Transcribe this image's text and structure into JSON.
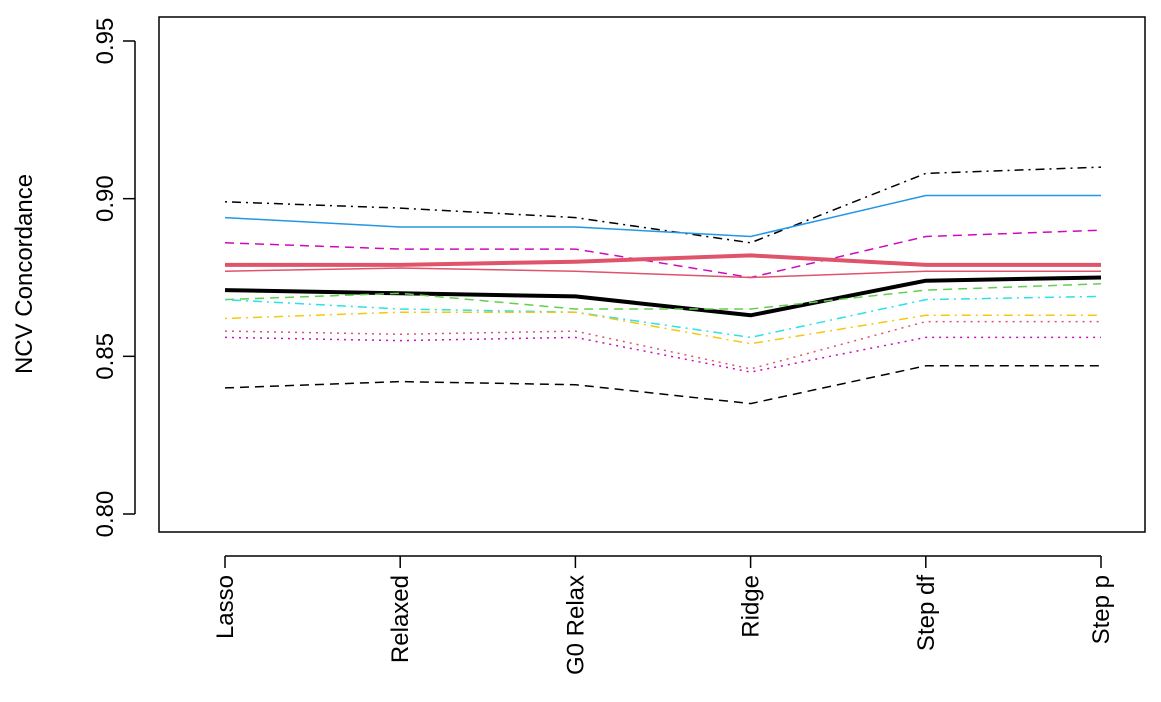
{
  "chart_data": {
    "type": "line",
    "ylabel": "NCV Concordance",
    "xlabel": "",
    "title": "",
    "categories": [
      "Lasso",
      "Relaxed",
      "G0 Relax",
      "Ridge",
      "Step df",
      "Step p"
    ],
    "ylim": [
      0.8,
      0.95
    ],
    "yticks": [
      0.8,
      0.85,
      0.9,
      0.95
    ],
    "ytick_labels": [
      "0.80",
      "0.85",
      "0.90",
      "0.95"
    ],
    "legend": "none",
    "grid": false,
    "series": [
      {
        "color": "#000000",
        "style": "dotdash",
        "width": 1.5,
        "values": [
          0.899,
          0.897,
          0.894,
          0.886,
          0.908,
          0.91
        ]
      },
      {
        "color": "#2297E6",
        "style": "solid",
        "width": 1.5,
        "values": [
          0.894,
          0.891,
          0.891,
          0.888,
          0.901,
          0.901
        ]
      },
      {
        "color": "#CD0BBC",
        "style": "dashed",
        "width": 1.5,
        "values": [
          0.886,
          0.884,
          0.884,
          0.875,
          0.888,
          0.89
        ]
      },
      {
        "color": "#DF536B",
        "style": "solid",
        "width": 4,
        "values": [
          0.879,
          0.879,
          0.88,
          0.882,
          0.879,
          0.879
        ]
      },
      {
        "color": "#DF536B",
        "style": "solid",
        "width": 1.5,
        "values": [
          0.877,
          0.878,
          0.877,
          0.875,
          0.877,
          0.877
        ]
      },
      {
        "color": "#000000",
        "style": "solid",
        "width": 4,
        "values": [
          0.871,
          0.87,
          0.869,
          0.863,
          0.874,
          0.875
        ]
      },
      {
        "color": "#61D04F",
        "style": "dashed",
        "width": 1.5,
        "values": [
          0.868,
          0.87,
          0.865,
          0.865,
          0.871,
          0.873
        ]
      },
      {
        "color": "#28E2E5",
        "style": "dotdash",
        "width": 1.5,
        "values": [
          0.868,
          0.865,
          0.864,
          0.856,
          0.868,
          0.869
        ]
      },
      {
        "color": "#F5C710",
        "style": "dotdash",
        "width": 1.5,
        "values": [
          0.862,
          0.864,
          0.864,
          0.854,
          0.863,
          0.863
        ]
      },
      {
        "color": "#DF536B",
        "style": "dotted",
        "width": 1.5,
        "values": [
          0.858,
          0.857,
          0.858,
          0.846,
          0.861,
          0.861
        ]
      },
      {
        "color": "#CD0BBC",
        "style": "dotted",
        "width": 1.5,
        "values": [
          0.856,
          0.855,
          0.856,
          0.845,
          0.856,
          0.856
        ]
      },
      {
        "color": "#000000",
        "style": "dashed",
        "width": 1.5,
        "values": [
          0.84,
          0.842,
          0.841,
          0.835,
          0.847,
          0.847
        ]
      }
    ]
  }
}
